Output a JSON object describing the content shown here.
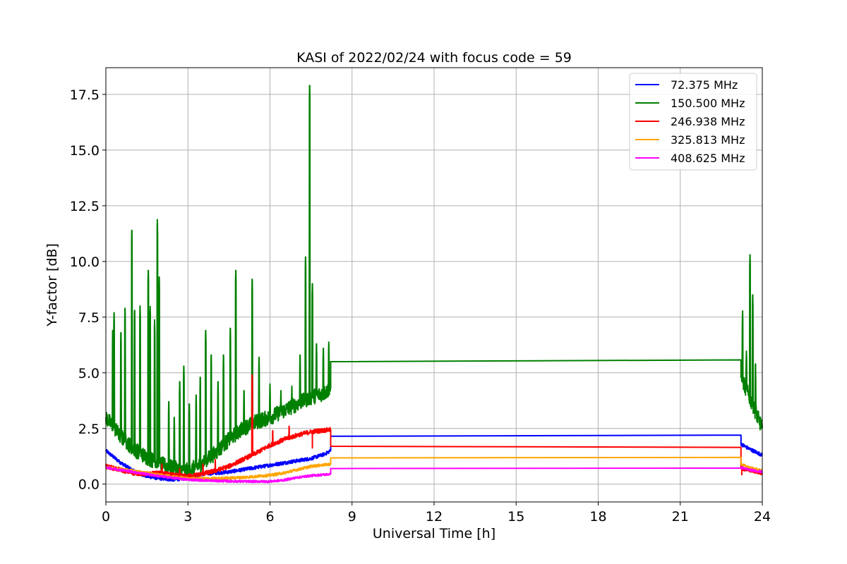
{
  "chart_data": {
    "type": "line",
    "title": "KASI of 2022/02/24 with focus code = 59",
    "xlabel": "Universal Time [h]",
    "ylabel": "Y-factor [dB]",
    "xlim": [
      0,
      24
    ],
    "ylim": [
      -0.8,
      18.7
    ],
    "xticks": [
      0,
      3,
      6,
      9,
      12,
      15,
      18,
      21,
      24
    ],
    "yticks": [
      0.0,
      2.5,
      5.0,
      7.5,
      10.0,
      12.5,
      15.0,
      17.5
    ],
    "ytick_labels": [
      "0.0",
      "2.5",
      "5.0",
      "7.5",
      "10.0",
      "12.5",
      "15.0",
      "17.5"
    ],
    "grid": true,
    "legend_position": "top-right",
    "series": [
      {
        "name": " 72.375 MHz",
        "color": "#0000ff",
        "noise": 0.08,
        "points": [
          [
            0,
            1.5
          ],
          [
            0.5,
            1.0
          ],
          [
            1,
            0.6
          ],
          [
            1.5,
            0.35
          ],
          [
            2,
            0.25
          ],
          [
            2.5,
            0.2
          ],
          [
            3,
            0.28
          ],
          [
            3.5,
            0.45
          ],
          [
            4,
            0.5
          ],
          [
            4.5,
            0.55
          ],
          [
            5,
            0.65
          ],
          [
            5.5,
            0.75
          ],
          [
            6,
            0.85
          ],
          [
            6.5,
            0.95
          ],
          [
            7,
            1.05
          ],
          [
            7.5,
            1.15
          ],
          [
            8,
            1.35
          ],
          [
            8.22,
            1.5
          ],
          [
            8.22,
            2.15
          ],
          [
            23.22,
            2.2
          ],
          [
            23.22,
            1.8
          ],
          [
            23.5,
            1.6
          ],
          [
            24,
            1.3
          ]
        ]
      },
      {
        "name": "150.500 MHz",
        "color": "#008000",
        "noise": 0.35,
        "points": [
          [
            0,
            3.0
          ],
          [
            0.5,
            2.2
          ],
          [
            1,
            1.6
          ],
          [
            1.5,
            1.2
          ],
          [
            2,
            0.9
          ],
          [
            2.5,
            0.7
          ],
          [
            3,
            0.6
          ],
          [
            3.5,
            0.9
          ],
          [
            4,
            1.4
          ],
          [
            4.5,
            2.0
          ],
          [
            5,
            2.5
          ],
          [
            5.5,
            2.8
          ],
          [
            6,
            3.0
          ],
          [
            6.5,
            3.3
          ],
          [
            7,
            3.6
          ],
          [
            7.5,
            3.9
          ],
          [
            8,
            4.1
          ],
          [
            8.22,
            4.3
          ],
          [
            8.22,
            5.5
          ],
          [
            23.22,
            5.58
          ],
          [
            23.22,
            4.8
          ],
          [
            23.5,
            4.0
          ],
          [
            24,
            2.5
          ]
        ],
        "spikes": [
          [
            0.25,
            6.9
          ],
          [
            0.3,
            7.7
          ],
          [
            0.55,
            6.8
          ],
          [
            0.7,
            7.9
          ],
          [
            0.95,
            11.4
          ],
          [
            1.05,
            7.8
          ],
          [
            1.25,
            8.0
          ],
          [
            1.55,
            9.6
          ],
          [
            1.62,
            8.0
          ],
          [
            1.78,
            7.4
          ],
          [
            1.88,
            11.9
          ],
          [
            1.95,
            9.3
          ],
          [
            2.3,
            3.7
          ],
          [
            2.5,
            3.0
          ],
          [
            2.7,
            4.6
          ],
          [
            2.85,
            5.3
          ],
          [
            3.05,
            3.6
          ],
          [
            3.3,
            4.0
          ],
          [
            3.45,
            4.8
          ],
          [
            3.65,
            6.9
          ],
          [
            3.85,
            5.8
          ],
          [
            4.1,
            4.6
          ],
          [
            4.3,
            5.8
          ],
          [
            4.55,
            7.0
          ],
          [
            4.75,
            9.6
          ],
          [
            5.05,
            4.2
          ],
          [
            5.35,
            9.2
          ],
          [
            5.6,
            5.7
          ],
          [
            6.0,
            4.5
          ],
          [
            6.4,
            4.2
          ],
          [
            6.8,
            4.4
          ],
          [
            7.1,
            5.8
          ],
          [
            7.3,
            10.2
          ],
          [
            7.45,
            17.9
          ],
          [
            7.55,
            9.0
          ],
          [
            7.7,
            6.3
          ],
          [
            7.95,
            6.1
          ],
          [
            8.15,
            6.4
          ],
          [
            23.28,
            7.8
          ],
          [
            23.42,
            6.0
          ],
          [
            23.55,
            10.3
          ],
          [
            23.65,
            8.5
          ],
          [
            23.75,
            5.4
          ]
        ]
      },
      {
        "name": "246.938 MHz",
        "color": "#ff0000",
        "noise": 0.1,
        "points": [
          [
            0,
            0.8
          ],
          [
            0.5,
            0.65
          ],
          [
            1,
            0.5
          ],
          [
            1.5,
            0.45
          ],
          [
            2,
            0.5
          ],
          [
            2.5,
            0.4
          ],
          [
            3,
            0.35
          ],
          [
            3.5,
            0.45
          ],
          [
            4,
            0.6
          ],
          [
            4.5,
            0.8
          ],
          [
            5,
            1.1
          ],
          [
            5.5,
            1.4
          ],
          [
            6,
            1.75
          ],
          [
            6.5,
            2.0
          ],
          [
            7,
            2.2
          ],
          [
            7.5,
            2.35
          ],
          [
            8.22,
            2.45
          ],
          [
            8.22,
            1.7
          ],
          [
            23.22,
            1.65
          ],
          [
            23.22,
            0.7
          ],
          [
            23.5,
            0.65
          ],
          [
            24,
            0.5
          ]
        ],
        "spikes": [
          [
            2.05,
            0.9
          ],
          [
            2.7,
            0.7
          ],
          [
            3.55,
            0.9
          ],
          [
            4.0,
            1.1
          ],
          [
            5.35,
            4.9
          ],
          [
            6.1,
            2.4
          ],
          [
            6.7,
            2.6
          ],
          [
            7.55,
            1.6
          ],
          [
            23.25,
            0.4
          ]
        ]
      },
      {
        "name": "325.813 MHz",
        "color": "#ffa500",
        "noise": 0.06,
        "points": [
          [
            0,
            0.75
          ],
          [
            1,
            0.6
          ],
          [
            2,
            0.4
          ],
          [
            3,
            0.25
          ],
          [
            4,
            0.25
          ],
          [
            5,
            0.3
          ],
          [
            6,
            0.4
          ],
          [
            6.5,
            0.5
          ],
          [
            7,
            0.65
          ],
          [
            7.5,
            0.8
          ],
          [
            8.22,
            0.9
          ],
          [
            8.22,
            1.18
          ],
          [
            23.22,
            1.2
          ],
          [
            23.22,
            0.9
          ],
          [
            23.5,
            0.75
          ],
          [
            24,
            0.6
          ]
        ]
      },
      {
        "name": "408.625 MHz",
        "color": "#ff00ff",
        "noise": 0.05,
        "points": [
          [
            0,
            0.75
          ],
          [
            1,
            0.55
          ],
          [
            2,
            0.35
          ],
          [
            3,
            0.2
          ],
          [
            4,
            0.15
          ],
          [
            5,
            0.12
          ],
          [
            6,
            0.12
          ],
          [
            6.5,
            0.18
          ],
          [
            7,
            0.3
          ],
          [
            7.5,
            0.38
          ],
          [
            8.22,
            0.45
          ],
          [
            8.22,
            0.7
          ],
          [
            23.22,
            0.72
          ],
          [
            23.22,
            0.75
          ],
          [
            23.5,
            0.65
          ],
          [
            24,
            0.55
          ]
        ]
      }
    ]
  }
}
